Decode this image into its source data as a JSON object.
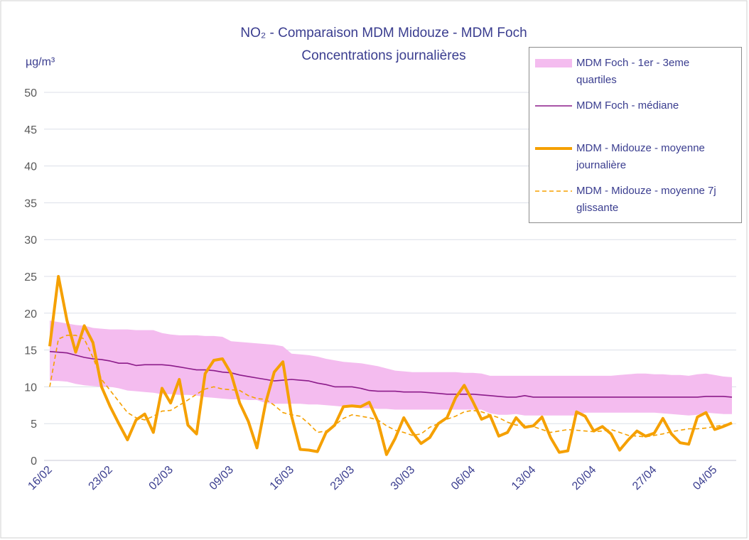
{
  "chart_data": {
    "type": "line",
    "title": "NO₂ - Comparaison MDM Midouze - MDM Foch",
    "subtitle": "Concentrations journalières",
    "y_label": "µg/m³",
    "categories": [
      "16/02",
      null,
      null,
      null,
      null,
      null,
      null,
      "23/02",
      null,
      null,
      null,
      null,
      null,
      null,
      "02/03",
      null,
      null,
      null,
      null,
      null,
      null,
      "09/03",
      null,
      null,
      null,
      null,
      null,
      null,
      "16/03",
      null,
      null,
      null,
      null,
      null,
      null,
      "23/03",
      null,
      null,
      null,
      null,
      null,
      null,
      "30/03",
      null,
      null,
      null,
      null,
      null,
      null,
      "06/04",
      null,
      null,
      null,
      null,
      null,
      null,
      "13/04",
      null,
      null,
      null,
      null,
      null,
      null,
      "20/04",
      null,
      null,
      null,
      null,
      null,
      null,
      "27/04",
      null,
      null,
      null,
      null,
      null,
      null,
      "04/05",
      null,
      null
    ],
    "ylim": [
      0,
      50
    ],
    "yticks": [
      0,
      5,
      10,
      15,
      20,
      25,
      30,
      35,
      40,
      45,
      50
    ],
    "grid": true,
    "legend": "top-right",
    "series": [
      {
        "name": "MDM Foch - 1er - 3eme quartiles",
        "style": "band",
        "color": "#f4bcef",
        "low": [
          10.8,
          10.8,
          10.7,
          10.4,
          10.2,
          10.1,
          10,
          10,
          9.8,
          9.5,
          9.4,
          9.3,
          9.2,
          9,
          9,
          8.9,
          8.9,
          8.8,
          8.6,
          8.5,
          8.4,
          8.3,
          8.3,
          8.2,
          8.2,
          7.8,
          7.7,
          7.7,
          7.7,
          7.7,
          7.6,
          7.6,
          7.5,
          7.4,
          7.3,
          7.2,
          7.1,
          7.1,
          7,
          7,
          6.9,
          6.9,
          6.9,
          6.9,
          6.9,
          6.9,
          6.9,
          6.9,
          6.9,
          6.9,
          6.9,
          6.4,
          6.2,
          6.2,
          6.3,
          6.1,
          6.1,
          6.1,
          6.1,
          6.1,
          6.1,
          6.1,
          6.5,
          6.5,
          6.5,
          6.5,
          6.5,
          6.5,
          6.5,
          6.5,
          6.5,
          6.4,
          6.3,
          6.2,
          6.1,
          6.2,
          6.5,
          6.4,
          6.3,
          6.3
        ],
        "high": [
          19,
          18.8,
          18.6,
          18.4,
          18.3,
          18,
          17.9,
          17.8,
          17.8,
          17.8,
          17.7,
          17.7,
          17.7,
          17.3,
          17.1,
          17,
          17,
          17,
          16.9,
          16.9,
          16.8,
          16.2,
          16.1,
          16,
          15.9,
          15.8,
          15.7,
          15.5,
          14.5,
          14.4,
          14.3,
          14.1,
          13.8,
          13.6,
          13.4,
          13.3,
          13.2,
          13,
          12.8,
          12.5,
          12.2,
          12.1,
          12,
          12,
          12,
          12,
          12,
          12,
          11.9,
          11.9,
          11.8,
          11.5,
          11.5,
          11.5,
          11.5,
          11.5,
          11.5,
          11.5,
          11.5,
          11.5,
          11.5,
          11.5,
          11.5,
          11.5,
          11.5,
          11.5,
          11.6,
          11.7,
          11.8,
          11.8,
          11.7,
          11.7,
          11.6,
          11.6,
          11.5,
          11.7,
          11.8,
          11.6,
          11.4,
          11.3
        ]
      },
      {
        "name": "MDM Foch - médiane",
        "style": "line",
        "color": "#8c1b8a",
        "values": [
          14.8,
          14.7,
          14.6,
          14.3,
          14,
          13.8,
          13.7,
          13.5,
          13.2,
          13.2,
          12.9,
          13,
          13,
          13,
          12.9,
          12.7,
          12.5,
          12.3,
          12.3,
          12.2,
          12,
          11.9,
          11.6,
          11.4,
          11.2,
          11,
          10.8,
          10.9,
          11,
          10.9,
          10.8,
          10.5,
          10.3,
          10,
          10,
          10,
          9.8,
          9.5,
          9.4,
          9.4,
          9.4,
          9.3,
          9.3,
          9.3,
          9.2,
          9.1,
          9,
          9,
          9,
          9,
          8.9,
          8.8,
          8.7,
          8.6,
          8.6,
          8.8,
          8.6,
          8.6,
          8.6,
          8.6,
          8.6,
          8.6,
          8.6,
          8.6,
          8.6,
          8.6,
          8.6,
          8.6,
          8.6,
          8.6,
          8.6,
          8.6,
          8.6,
          8.6,
          8.6,
          8.6,
          8.7,
          8.7,
          8.7,
          8.6
        ]
      },
      {
        "name": "MDM - Midouze - moyenne journalière",
        "style": "thick",
        "color": "#f5a000",
        "values": [
          15.5,
          25,
          19,
          14.7,
          18.3,
          16,
          10,
          7.3,
          5,
          2.8,
          5.5,
          6.3,
          3.8,
          9.8,
          7.8,
          11,
          4.8,
          3.6,
          11.8,
          13.6,
          13.8,
          11.8,
          7.8,
          5.3,
          1.7,
          7.8,
          12,
          13.4,
          6,
          1.5,
          1.4,
          1.2,
          3.8,
          4.8,
          7.3,
          7.4,
          7.3,
          7.9,
          5.3,
          0.8,
          3,
          5.8,
          3.8,
          2.3,
          3.1,
          5,
          5.8,
          8.5,
          10.2,
          8,
          5.6,
          6.1,
          3.3,
          3.8,
          5.8,
          4.5,
          4.7,
          5.9,
          3.1,
          1.1,
          1.3,
          6.6,
          6,
          4,
          4.6,
          3.6,
          1.4,
          2.8,
          4,
          3.3,
          3.7,
          5.7,
          3.6,
          2.4,
          2.2,
          5.9,
          6.5,
          4.2,
          4.6,
          5.1
        ]
      },
      {
        "name": "MDM - Midouze - moyenne 7j glissante",
        "style": "dashed",
        "color": "#f5a000",
        "values": [
          10,
          16.5,
          17,
          17,
          16.5,
          14,
          11,
          9.5,
          8,
          6.5,
          5.8,
          5.5,
          6,
          6.7,
          6.8,
          7.5,
          8.2,
          9,
          9.7,
          10,
          9.7,
          9.6,
          9.5,
          8.8,
          8.4,
          8.3,
          7.5,
          6.5,
          6.2,
          6,
          5,
          3.8,
          4,
          4.8,
          5.7,
          6.2,
          6,
          5.8,
          5.5,
          4.7,
          4.1,
          3.8,
          3.4,
          3.6,
          4.5,
          5,
          5.6,
          6,
          6.6,
          6.8,
          6.6,
          6.2,
          5.8,
          5.2,
          4.8,
          4.8,
          4.6,
          4.2,
          3.8,
          4,
          4.2,
          4.1,
          4,
          3.9,
          4,
          4.2,
          3.8,
          3.4,
          3.3,
          3.2,
          3.4,
          3.6,
          3.9,
          4.1,
          4.3,
          4.3,
          4.4,
          4.6,
          4.8,
          5
        ]
      }
    ]
  }
}
